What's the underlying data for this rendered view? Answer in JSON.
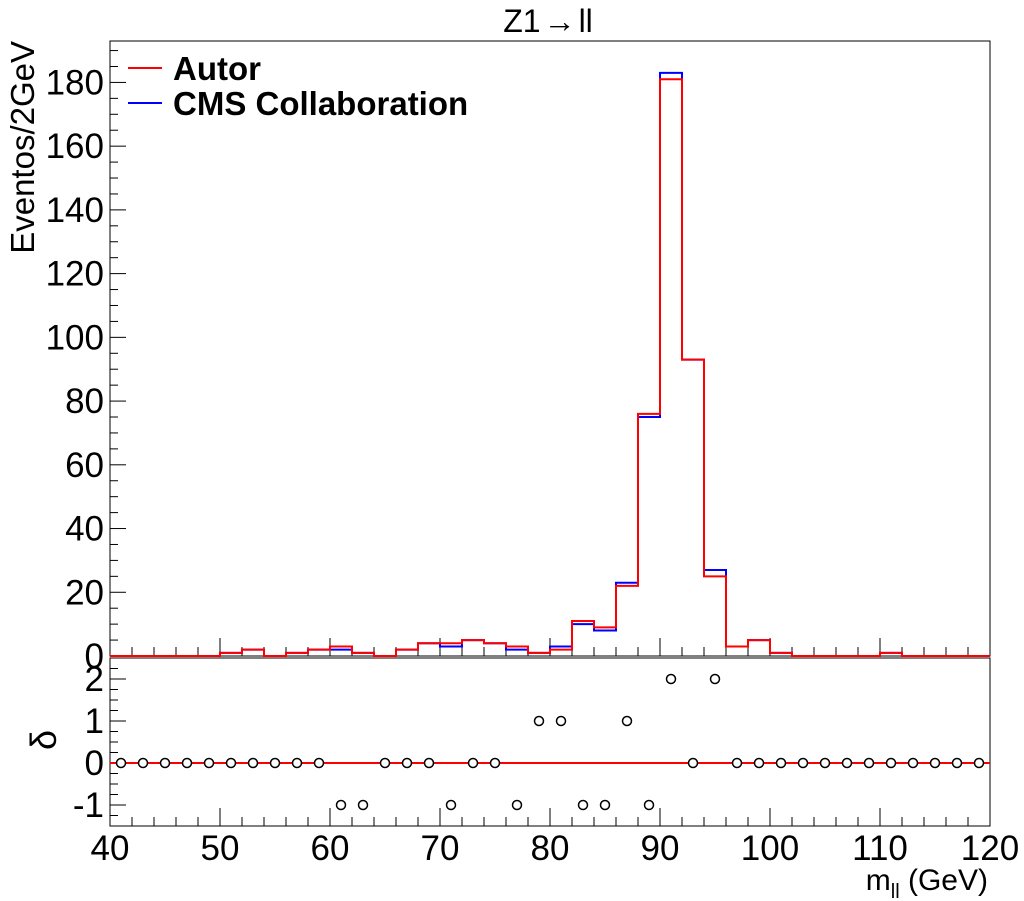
{
  "chart_data": [
    {
      "type": "step",
      "title": "Z1→ ll",
      "xlabel": "",
      "ylabel": "Eventos/2GeV",
      "xlim": [
        40,
        120
      ],
      "ylim": [
        0,
        193
      ],
      "x_ticks": [
        40,
        50,
        60,
        70,
        80,
        90,
        100,
        110,
        120
      ],
      "y_ticks": [
        0,
        20,
        40,
        60,
        80,
        100,
        120,
        140,
        160,
        180
      ],
      "legend_position": "top-left",
      "bin_edges": [
        40,
        42,
        44,
        46,
        48,
        50,
        52,
        54,
        56,
        58,
        60,
        62,
        64,
        66,
        68,
        70,
        72,
        74,
        76,
        78,
        80,
        82,
        84,
        86,
        88,
        90,
        92,
        94,
        96,
        98,
        100,
        102,
        104,
        106,
        108,
        110,
        112,
        114,
        116,
        118,
        120
      ],
      "series": [
        {
          "name": "CMS Collaboration",
          "color": "#0000ff",
          "values": [
            0,
            0,
            0,
            0,
            0,
            1,
            2,
            0,
            1,
            2,
            2,
            1,
            0,
            2,
            4,
            3,
            5,
            4,
            2,
            1,
            3,
            10,
            8,
            23,
            75,
            183,
            93,
            27,
            3,
            5,
            1,
            0,
            0,
            0,
            0,
            1,
            0,
            0,
            0,
            0
          ]
        },
        {
          "name": "Autor",
          "color": "#ff0000",
          "values": [
            0,
            0,
            0,
            0,
            0,
            1,
            2,
            0,
            1,
            2,
            3,
            1,
            0,
            2,
            4,
            4,
            5,
            4,
            3,
            1,
            2,
            11,
            9,
            22,
            76,
            181,
            93,
            25,
            3,
            5,
            1,
            0,
            0,
            0,
            0,
            1,
            0,
            0,
            0,
            0
          ]
        }
      ]
    },
    {
      "type": "scatter",
      "xlabel": "m_ll (GeV)",
      "ylabel": "δ",
      "xlim": [
        40,
        120
      ],
      "ylim": [
        -1.5,
        2.5
      ],
      "x_ticks": [
        40,
        50,
        60,
        70,
        80,
        90,
        100,
        110,
        120
      ],
      "y_ticks": [
        -1,
        0,
        1,
        2
      ],
      "reference_line": {
        "y": 0,
        "color": "#ff0000"
      },
      "x": [
        41,
        43,
        45,
        47,
        49,
        51,
        53,
        55,
        57,
        59,
        61,
        63,
        65,
        67,
        69,
        71,
        73,
        75,
        77,
        79,
        81,
        83,
        85,
        87,
        89,
        91,
        93,
        95,
        97,
        99,
        101,
        103,
        105,
        107,
        109,
        111,
        113,
        115,
        117,
        119
      ],
      "y": [
        0,
        0,
        0,
        0,
        0,
        0,
        0,
        0,
        0,
        0,
        -1,
        -1,
        0,
        0,
        0,
        -1,
        0,
        0,
        -1,
        1,
        1,
        -1,
        -1,
        1,
        -1,
        2,
        0,
        2,
        0,
        0,
        0,
        0,
        0,
        0,
        0,
        0,
        0,
        0,
        0,
        0
      ]
    }
  ],
  "labels": {
    "title_main": "Z1",
    "title_arrow": "→",
    "title_rest": "ll",
    "ylabel_top": "Eventos/2GeV",
    "ylabel_bottom": "δ",
    "xlabel_m": "m",
    "xlabel_sub": "ll",
    "xlabel_unit": " (GeV)"
  }
}
